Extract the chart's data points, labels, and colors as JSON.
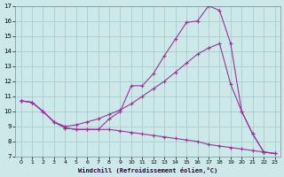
{
  "xlabel": "Windchill (Refroidissement éolien,°C)",
  "background_color": "#cce8e8",
  "grid_color": "#aacccc",
  "line_color": "#993399",
  "xlim": [
    -0.5,
    23.5
  ],
  "ylim": [
    7,
    17
  ],
  "xticks": [
    0,
    1,
    2,
    3,
    4,
    5,
    6,
    7,
    8,
    9,
    10,
    11,
    12,
    13,
    14,
    15,
    16,
    17,
    18,
    19,
    20,
    21,
    22,
    23
  ],
  "yticks": [
    7,
    8,
    9,
    10,
    11,
    12,
    13,
    14,
    15,
    16,
    17
  ],
  "line1_x": [
    0,
    1,
    2,
    3,
    4,
    5,
    6,
    7,
    8,
    9,
    10,
    11,
    12,
    13,
    14,
    15,
    16,
    17,
    18,
    19,
    20,
    21,
    22,
    23
  ],
  "line1_y": [
    10.7,
    10.6,
    10.0,
    9.3,
    8.9,
    8.8,
    8.8,
    8.8,
    9.5,
    10.0,
    11.7,
    11.7,
    12.5,
    13.7,
    14.8,
    15.9,
    16.0,
    17.0,
    16.7,
    14.5,
    10.0,
    8.5,
    7.3,
    7.2
  ],
  "line2_x": [
    0,
    1,
    2,
    3,
    4,
    5,
    6,
    7,
    8,
    9,
    10,
    11,
    12,
    13,
    14,
    15,
    16,
    17,
    18,
    19,
    20,
    21,
    22,
    23
  ],
  "line2_y": [
    10.7,
    10.6,
    10.0,
    9.3,
    9.0,
    9.1,
    9.3,
    9.5,
    9.8,
    10.1,
    10.5,
    11.0,
    11.5,
    12.0,
    12.6,
    13.2,
    13.8,
    14.2,
    14.5,
    11.8,
    10.0,
    8.5,
    7.3,
    7.2
  ],
  "line3_x": [
    0,
    1,
    2,
    3,
    4,
    5,
    6,
    7,
    8,
    9,
    10,
    11,
    12,
    13,
    14,
    15,
    16,
    17,
    18,
    19,
    20,
    21,
    22,
    23
  ],
  "line3_y": [
    10.7,
    10.6,
    10.0,
    9.3,
    8.9,
    8.8,
    8.8,
    8.8,
    8.8,
    8.7,
    8.6,
    8.5,
    8.4,
    8.3,
    8.2,
    8.1,
    8.0,
    7.8,
    7.7,
    7.6,
    7.5,
    7.4,
    7.3,
    7.2
  ]
}
